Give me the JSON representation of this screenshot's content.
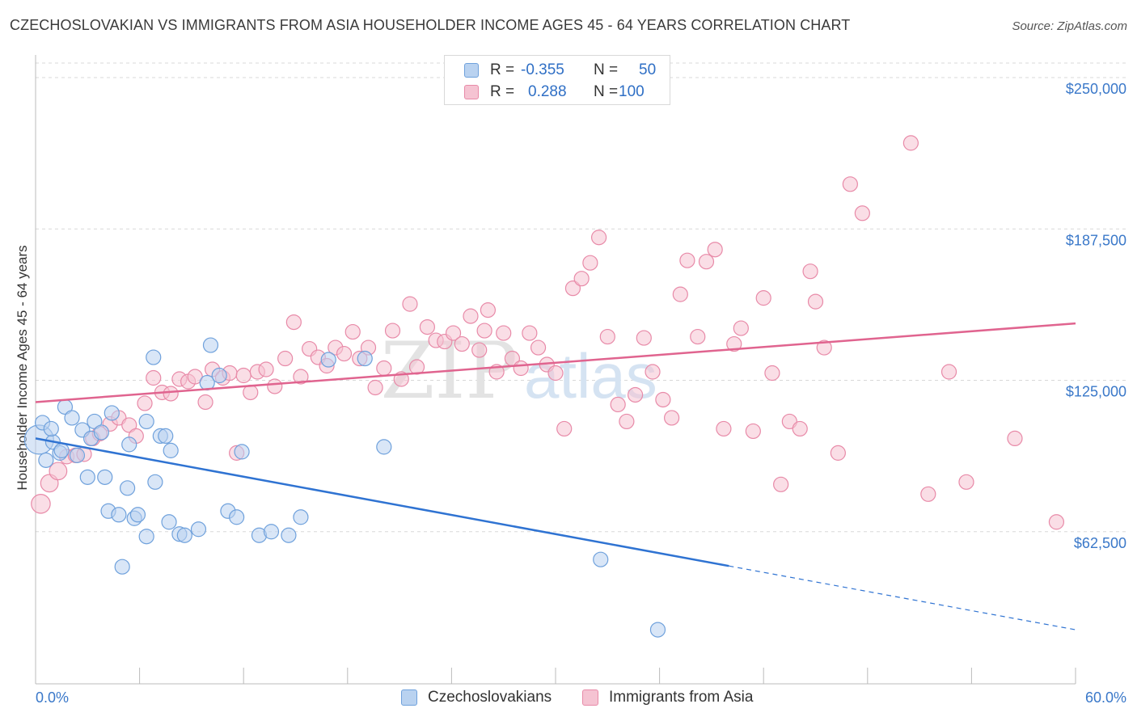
{
  "title": "CZECHOSLOVAKIAN VS IMMIGRANTS FROM ASIA HOUSEHOLDER INCOME AGES 45 - 64 YEARS CORRELATION CHART",
  "source": "Source: ZipAtlas.com",
  "watermark": {
    "left": "ZIP",
    "right": "atlas"
  },
  "colors": {
    "blue": "#6fa1dc",
    "blue_fill": "#b9d2f0",
    "blue_line": "#2f73d2",
    "pink": "#e88aa8",
    "pink_fill": "#f5c3d2",
    "pink_line": "#e0648f",
    "tick_label": "#3a78c9"
  },
  "legend": {
    "rows": [
      {
        "r_label": "R =",
        "r_value": "-0.355",
        "n_label": "N =",
        "n_value": "50"
      },
      {
        "r_label": "R =",
        "r_value": "0.288",
        "n_label": "N =",
        "n_value": "100"
      }
    ]
  },
  "bottom_legend": [
    {
      "label": "Czechoslovakians"
    },
    {
      "label": "Immigrants from Asia"
    }
  ],
  "chart_data": {
    "type": "scatter",
    "title": "CZECHOSLOVAKIAN VS IMMIGRANTS FROM ASIA HOUSEHOLDER INCOME AGES 45 - 64 YEARS CORRELATION CHART",
    "xlabel": "",
    "ylabel": "Householder Income Ages 45 - 64 years",
    "xlim": [
      0,
      60
    ],
    "ylim": [
      0,
      255000
    ],
    "x_tick_labels": [
      "0.0%",
      "60.0%"
    ],
    "y_ticks": [
      62500,
      125000,
      187500,
      250000
    ],
    "y_tick_labels": [
      "$62,500",
      "$125,000",
      "$187,500",
      "$250,000"
    ],
    "grid": true,
    "legend_position": "top-center",
    "series": [
      {
        "name": "Czechoslovakians",
        "color": "#6fa1dc",
        "trend": {
          "x": [
            0,
            40,
            60
          ],
          "y": [
            101000,
            48500,
            22000
          ],
          "solid_until": 40
        },
        "points": [
          [
            0.2,
            100500,
            2
          ],
          [
            0.4,
            107500,
            1
          ],
          [
            1.0,
            99500,
            1
          ],
          [
            0.9,
            105000,
            1
          ],
          [
            1.4,
            95000,
            1
          ],
          [
            1.7,
            114000,
            1
          ],
          [
            2.1,
            109500,
            1
          ],
          [
            2.4,
            94000,
            1
          ],
          [
            2.7,
            104500,
            1
          ],
          [
            3.0,
            85000,
            1
          ],
          [
            3.2,
            101000,
            1
          ],
          [
            3.4,
            108000,
            1
          ],
          [
            3.8,
            103500,
            1
          ],
          [
            4.0,
            85000,
            1
          ],
          [
            4.2,
            71000,
            1
          ],
          [
            4.4,
            111500,
            1
          ],
          [
            4.8,
            69500,
            1
          ],
          [
            5.0,
            48000,
            1
          ],
          [
            5.3,
            80500,
            1
          ],
          [
            5.4,
            98500,
            1
          ],
          [
            5.7,
            68000,
            1
          ],
          [
            5.9,
            69500,
            1
          ],
          [
            6.4,
            60500,
            1
          ],
          [
            6.4,
            108000,
            1
          ],
          [
            6.8,
            134500,
            1
          ],
          [
            6.9,
            83000,
            1
          ],
          [
            7.2,
            102000,
            1
          ],
          [
            7.5,
            102000,
            1
          ],
          [
            7.8,
            96000,
            1
          ],
          [
            7.7,
            66500,
            1
          ],
          [
            8.3,
            61500,
            1
          ],
          [
            8.6,
            61000,
            1
          ],
          [
            9.4,
            63500,
            1
          ],
          [
            9.9,
            124000,
            1
          ],
          [
            10.1,
            139500,
            1
          ],
          [
            10.6,
            127000,
            1
          ],
          [
            11.1,
            71000,
            1
          ],
          [
            11.6,
            68500,
            1
          ],
          [
            11.9,
            95500,
            1
          ],
          [
            12.9,
            61000,
            1
          ],
          [
            13.6,
            62500,
            1
          ],
          [
            14.6,
            61000,
            1
          ],
          [
            15.3,
            68500,
            1
          ],
          [
            16.9,
            133500,
            1
          ],
          [
            19.0,
            134000,
            1
          ],
          [
            20.1,
            97500,
            1
          ],
          [
            32.6,
            51000,
            1
          ],
          [
            35.9,
            22000,
            1
          ],
          [
            1.5,
            96000,
            1
          ],
          [
            0.6,
            92000,
            1
          ]
        ]
      },
      {
        "name": "Immigrants from Asia",
        "color": "#e88aa8",
        "trend": {
          "x": [
            0,
            60
          ],
          "y": [
            116000,
            148500
          ],
          "solid_until": 60
        },
        "points": [
          [
            0.3,
            74000,
            1.3
          ],
          [
            0.8,
            82500,
            1.2
          ],
          [
            1.3,
            87500,
            1.2
          ],
          [
            1.8,
            93500,
            1
          ],
          [
            2.3,
            94000,
            1
          ],
          [
            2.8,
            94500,
            1
          ],
          [
            3.3,
            101000,
            1
          ],
          [
            3.7,
            103000,
            1
          ],
          [
            4.3,
            107000,
            1
          ],
          [
            4.8,
            109500,
            1
          ],
          [
            5.4,
            106500,
            1
          ],
          [
            5.8,
            102000,
            1
          ],
          [
            6.3,
            115500,
            1
          ],
          [
            6.8,
            126000,
            1
          ],
          [
            7.3,
            120000,
            1
          ],
          [
            7.8,
            119500,
            1
          ],
          [
            8.3,
            125500,
            1
          ],
          [
            8.8,
            124500,
            1
          ],
          [
            9.2,
            126500,
            1
          ],
          [
            9.8,
            116000,
            1
          ],
          [
            10.2,
            129500,
            1
          ],
          [
            10.8,
            126000,
            1
          ],
          [
            11.2,
            128000,
            1
          ],
          [
            11.6,
            95000,
            1
          ],
          [
            12.0,
            127000,
            1
          ],
          [
            12.4,
            120000,
            1
          ],
          [
            12.8,
            128500,
            1
          ],
          [
            13.3,
            129500,
            1
          ],
          [
            13.8,
            122500,
            1
          ],
          [
            14.4,
            134000,
            1
          ],
          [
            14.9,
            149000,
            1
          ],
          [
            15.3,
            126500,
            1
          ],
          [
            15.8,
            138000,
            1
          ],
          [
            16.3,
            134500,
            1
          ],
          [
            16.8,
            131000,
            1
          ],
          [
            17.3,
            138500,
            1
          ],
          [
            17.8,
            136000,
            1
          ],
          [
            18.3,
            145000,
            1
          ],
          [
            18.7,
            134000,
            1
          ],
          [
            19.2,
            138500,
            1
          ],
          [
            19.6,
            122000,
            1
          ],
          [
            20.1,
            130000,
            1
          ],
          [
            20.6,
            145500,
            1
          ],
          [
            21.1,
            125500,
            1
          ],
          [
            21.6,
            156500,
            1
          ],
          [
            22.0,
            130500,
            1
          ],
          [
            22.6,
            147000,
            1
          ],
          [
            23.1,
            141500,
            1
          ],
          [
            23.6,
            141000,
            1
          ],
          [
            24.1,
            144500,
            1
          ],
          [
            24.6,
            140000,
            1
          ],
          [
            25.1,
            151500,
            1
          ],
          [
            25.6,
            137500,
            1
          ],
          [
            26.1,
            154000,
            1
          ],
          [
            26.6,
            128500,
            1
          ],
          [
            27.0,
            144500,
            1
          ],
          [
            27.5,
            134000,
            1
          ],
          [
            28.0,
            130000,
            1
          ],
          [
            28.5,
            144500,
            1
          ],
          [
            29.0,
            138500,
            1
          ],
          [
            29.5,
            131500,
            1
          ],
          [
            30.0,
            128000,
            1
          ],
          [
            30.5,
            105000,
            1
          ],
          [
            31.0,
            163000,
            1
          ],
          [
            31.5,
            167000,
            1
          ],
          [
            32.0,
            173500,
            1
          ],
          [
            32.5,
            184000,
            1
          ],
          [
            33.0,
            143000,
            1
          ],
          [
            33.6,
            115000,
            1
          ],
          [
            34.1,
            108000,
            1
          ],
          [
            34.6,
            119000,
            1
          ],
          [
            35.1,
            142500,
            1
          ],
          [
            35.6,
            128500,
            1
          ],
          [
            36.2,
            117000,
            1
          ],
          [
            36.7,
            109500,
            1
          ],
          [
            37.2,
            160500,
            1
          ],
          [
            37.6,
            174500,
            1
          ],
          [
            38.2,
            143000,
            1
          ],
          [
            38.7,
            174000,
            1
          ],
          [
            39.2,
            179000,
            1
          ],
          [
            39.7,
            105000,
            1
          ],
          [
            40.3,
            140000,
            1
          ],
          [
            40.7,
            146500,
            1
          ],
          [
            41.4,
            104000,
            1
          ],
          [
            42.0,
            159000,
            1
          ],
          [
            42.5,
            128000,
            1
          ],
          [
            43.0,
            82000,
            1
          ],
          [
            43.5,
            108000,
            1
          ],
          [
            44.1,
            105000,
            1
          ],
          [
            44.7,
            170000,
            1
          ],
          [
            45.0,
            157500,
            1
          ],
          [
            45.5,
            138500,
            1
          ],
          [
            46.3,
            95000,
            1
          ],
          [
            47.0,
            206000,
            1
          ],
          [
            47.7,
            194000,
            1
          ],
          [
            50.5,
            223000,
            1
          ],
          [
            51.5,
            78000,
            1
          ],
          [
            52.7,
            128500,
            1
          ],
          [
            53.7,
            83000,
            1
          ],
          [
            56.5,
            101000,
            1
          ],
          [
            58.9,
            66500,
            1
          ],
          [
            25.9,
            145500,
            1
          ]
        ]
      }
    ]
  }
}
